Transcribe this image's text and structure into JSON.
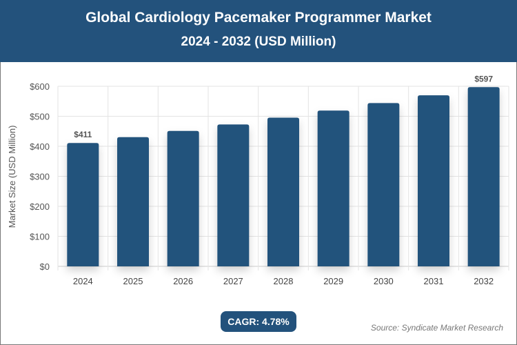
{
  "header": {
    "title": "Global Cardiology Pacemaker Programmer Market",
    "subtitle": "2024 - 2032 (USD Million)"
  },
  "footer": {
    "cagr": "CAGR: 4.78%",
    "source": "Source: Syndicate Market Research"
  },
  "colors": {
    "bar": "#23527c",
    "header": "#23527c"
  },
  "chart_data": {
    "type": "bar",
    "title": "Global Cardiology Pacemaker Programmer Market",
    "subtitle": "2024 - 2032 (USD Million)",
    "xlabel": "",
    "ylabel": "Market Size (USD Million)",
    "categories": [
      "2024",
      "2025",
      "2026",
      "2027",
      "2028",
      "2029",
      "2030",
      "2031",
      "2032"
    ],
    "values": [
      411,
      430.6,
      451.2,
      472.8,
      495.4,
      519.1,
      543.9,
      569.9,
      597
    ],
    "data_labels": {
      "0": "$411",
      "8": "$597"
    },
    "ylim": [
      0,
      600
    ],
    "yticks": [
      0,
      100,
      200,
      300,
      400,
      500,
      600
    ],
    "ytick_labels": [
      "$0",
      "$100",
      "$200",
      "$300",
      "$400",
      "$500",
      "$600"
    ],
    "grid": true,
    "legend": "none"
  }
}
